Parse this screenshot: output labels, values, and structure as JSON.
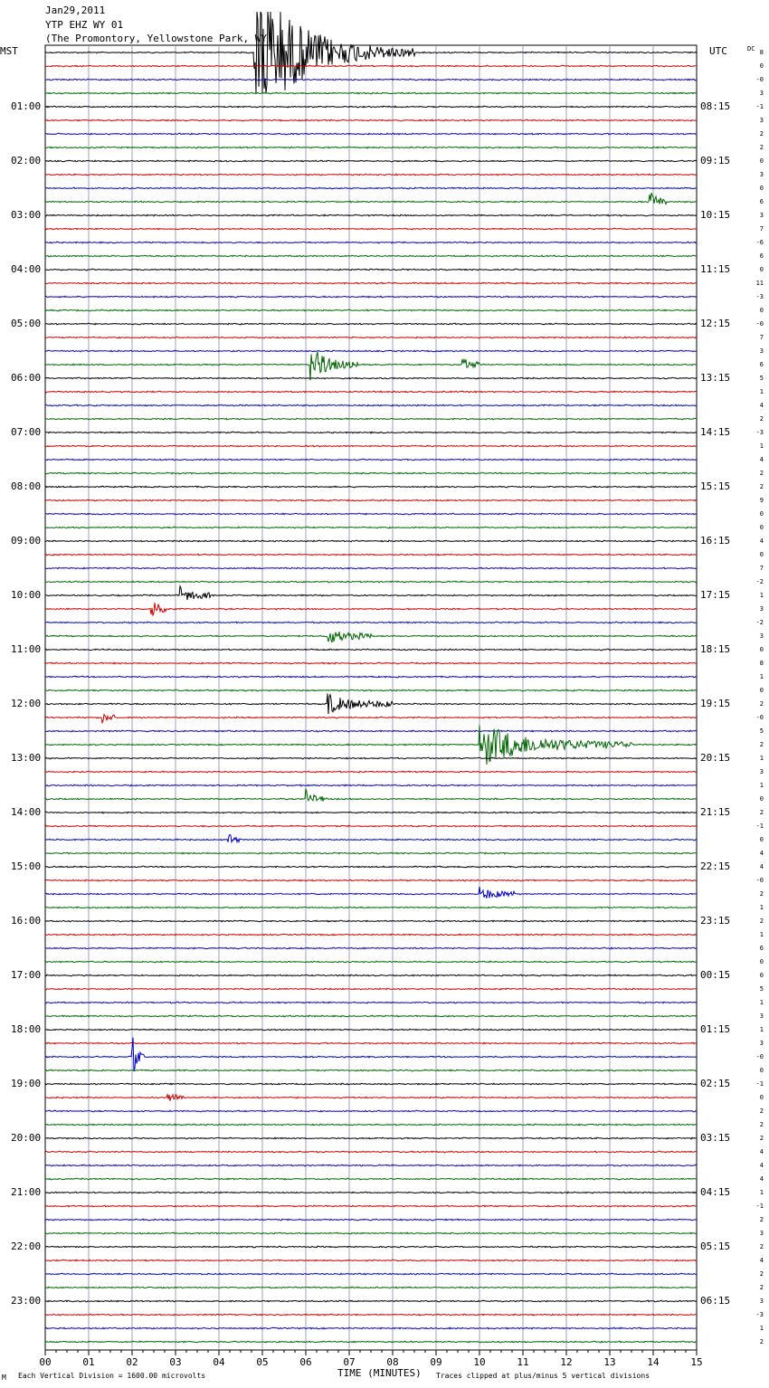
{
  "header": {
    "date": "Jan29,2011",
    "station": "YTP EHZ WY 01",
    "location": "(The Promontory, Yellowstone Park, WY)"
  },
  "labels": {
    "left_tz": "MST",
    "right_tz": "UTC",
    "dc": "DC",
    "xlabel": "TIME (MINUTES)",
    "scale_note": "Each Vertical Division = 1600.00 microvolts",
    "clip_note": "Traces clipped at plus/minus 5 vertical divisions",
    "corner_mark": "M"
  },
  "colors": {
    "trace_cycle": [
      "#000000",
      "#cc0000",
      "#0000cc",
      "#006600"
    ],
    "grid": "#8888aa",
    "background": "#ffffff"
  },
  "chart_data": {
    "type": "line",
    "title": "YTP EHZ WY 01",
    "xlabel": "TIME (MINUTES)",
    "xlim": [
      0,
      15
    ],
    "x_ticks": [
      "00",
      "01",
      "02",
      "03",
      "04",
      "05",
      "06",
      "07",
      "08",
      "09",
      "10",
      "11",
      "12",
      "13",
      "14",
      "15"
    ],
    "traces_per_hour": 4,
    "minutes_per_trace": 15,
    "left_hour_labels": [
      "",
      "01:00",
      "02:00",
      "03:00",
      "04:00",
      "05:00",
      "06:00",
      "07:00",
      "08:00",
      "09:00",
      "10:00",
      "11:00",
      "12:00",
      "13:00",
      "14:00",
      "15:00",
      "16:00",
      "17:00",
      "18:00",
      "19:00",
      "20:00",
      "21:00",
      "22:00",
      "23:00"
    ],
    "right_hour_labels": [
      "",
      "08:15",
      "09:15",
      "10:15",
      "11:15",
      "12:15",
      "13:15",
      "14:15",
      "15:15",
      "16:15",
      "17:15",
      "18:15",
      "19:15",
      "20:15",
      "21:15",
      "22:15",
      "23:15",
      "00:15",
      "01:15",
      "02:15",
      "03:15",
      "04:15",
      "05:15",
      "06:15"
    ],
    "dc_offsets": [
      "8",
      "0",
      "-0",
      "3",
      "-1",
      "3",
      "2",
      "2",
      "0",
      "3",
      "0",
      "6",
      "3",
      "7",
      "-6",
      "6",
      "0",
      "11",
      "-3",
      "0",
      "-0",
      "7",
      "3",
      "6",
      "5",
      "1",
      "4",
      "2",
      "-3",
      "1",
      "4",
      "2",
      "2",
      "9",
      "0",
      "0",
      "4",
      "0",
      "7",
      "-2",
      "1",
      "3",
      "-2",
      "3",
      "0",
      "8",
      "1",
      "0",
      "2",
      "-0",
      "5",
      "2",
      "1",
      "3",
      "1",
      "0",
      "2",
      "-1",
      "0",
      "4",
      "4",
      "-0",
      "2",
      "1",
      "2",
      "1",
      "6",
      "0",
      "0",
      "5",
      "1",
      "3",
      "1",
      "3",
      "-0",
      "0",
      "-1",
      "0",
      "2",
      "2",
      "2",
      "4",
      "4",
      "4",
      "1",
      "-1",
      "2",
      "3",
      "2",
      "4",
      "2",
      "2",
      "3",
      "-3",
      "1",
      "2"
    ],
    "events": [
      {
        "trace": 0,
        "minute": 4.8,
        "end_minute": 8.5,
        "amplitude": 5.0
      },
      {
        "trace": 23,
        "minute": 6.1,
        "end_minute": 7.2,
        "amplitude": 1.2
      },
      {
        "trace": 23,
        "minute": 9.6,
        "end_minute": 10.0,
        "amplitude": 0.4
      },
      {
        "trace": 11,
        "minute": 13.9,
        "end_minute": 14.3,
        "amplitude": 0.8
      },
      {
        "trace": 40,
        "minute": 3.1,
        "end_minute": 3.8,
        "amplitude": 0.5
      },
      {
        "trace": 41,
        "minute": 2.4,
        "end_minute": 2.8,
        "amplitude": 1.2
      },
      {
        "trace": 43,
        "minute": 6.5,
        "end_minute": 7.5,
        "amplitude": 0.4
      },
      {
        "trace": 48,
        "minute": 6.5,
        "end_minute": 8.0,
        "amplitude": 0.5
      },
      {
        "trace": 49,
        "minute": 1.3,
        "end_minute": 1.6,
        "amplitude": 0.4
      },
      {
        "trace": 51,
        "minute": 10.0,
        "end_minute": 13.5,
        "amplitude": 1.3
      },
      {
        "trace": 55,
        "minute": 6.0,
        "end_minute": 6.5,
        "amplitude": 0.5
      },
      {
        "trace": 58,
        "minute": 4.2,
        "end_minute": 4.5,
        "amplitude": 0.3
      },
      {
        "trace": 62,
        "minute": 10.0,
        "end_minute": 10.8,
        "amplitude": 0.3
      },
      {
        "trace": 74,
        "minute": 2.0,
        "end_minute": 2.3,
        "amplitude": 1.4
      },
      {
        "trace": 77,
        "minute": 2.8,
        "end_minute": 3.2,
        "amplitude": 0.3
      }
    ]
  }
}
